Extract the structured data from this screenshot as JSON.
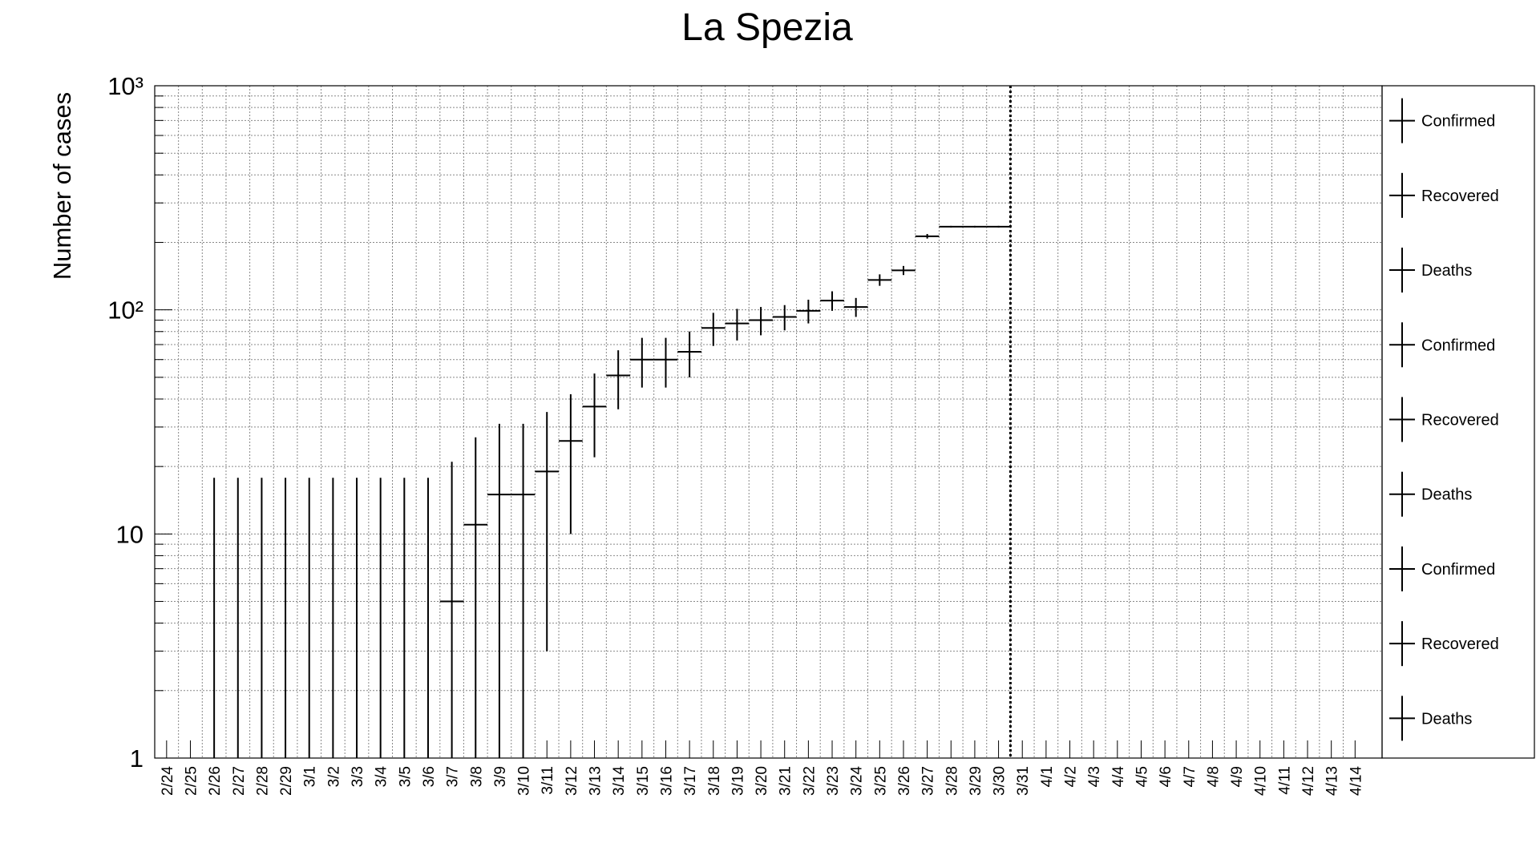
{
  "chart_data": {
    "type": "scatter",
    "title": "La Spezia",
    "xlabel": "",
    "ylabel": "Number of cases",
    "y_scale": "log",
    "ylim": [
      1,
      1000
    ],
    "y_tick_labels": [
      "1",
      "10",
      "10²",
      "10³"
    ],
    "grid": true,
    "categories": [
      "2/24",
      "2/25",
      "2/26",
      "2/27",
      "2/28",
      "2/29",
      "3/1",
      "3/2",
      "3/3",
      "3/4",
      "3/5",
      "3/6",
      "3/7",
      "3/8",
      "3/9",
      "3/10",
      "3/11",
      "3/12",
      "3/13",
      "3/14",
      "3/15",
      "3/16",
      "3/17",
      "3/18",
      "3/19",
      "3/20",
      "3/21",
      "3/22",
      "3/23",
      "3/24",
      "3/25",
      "3/26",
      "3/27",
      "3/28",
      "3/29",
      "3/30",
      "3/31",
      "4/1",
      "4/2",
      "4/3",
      "4/4",
      "4/5",
      "4/6",
      "4/7",
      "4/8",
      "4/9",
      "4/10",
      "4/11",
      "4/12",
      "4/13",
      "4/14"
    ],
    "marker_date": "3/31",
    "series": [
      {
        "name": "Confirmed",
        "values": [
          null,
          null,
          0,
          0,
          0,
          0,
          0,
          0,
          0,
          0,
          0,
          0,
          5,
          11,
          15,
          15,
          19,
          26,
          37,
          51,
          60,
          60,
          65,
          83,
          87,
          90,
          93,
          99,
          110,
          103,
          136,
          150,
          213,
          235,
          235,
          235,
          null,
          null,
          null,
          null,
          null,
          null,
          null,
          null,
          null,
          null,
          null,
          null,
          null,
          null,
          null
        ],
        "errors": [
          null,
          null,
          null,
          null,
          null,
          null,
          null,
          null,
          null,
          null,
          null,
          null,
          16,
          16,
          16,
          16,
          16,
          16,
          15,
          15,
          15,
          15,
          15,
          14,
          14,
          13,
          12,
          12,
          11,
          10,
          8,
          7,
          5,
          2,
          2,
          2,
          null,
          null,
          null,
          null,
          null,
          null,
          null,
          null,
          null,
          null,
          null,
          null,
          null,
          null,
          null
        ]
      }
    ],
    "legend": {
      "placement": "right",
      "entries": [
        "Confirmed",
        "Recovered",
        "Deaths",
        "Confirmed",
        "Recovered",
        "Deaths",
        "Confirmed",
        "Recovered",
        "Deaths"
      ]
    }
  }
}
